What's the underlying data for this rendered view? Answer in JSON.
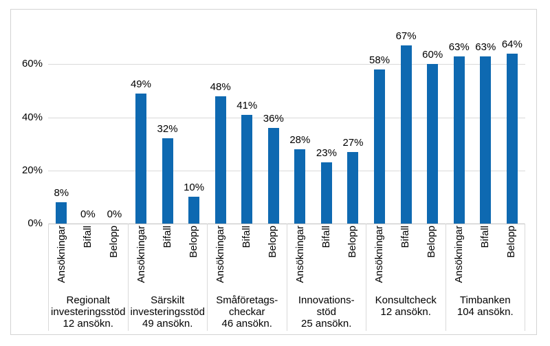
{
  "figure": {
    "background": "#FFFFFF",
    "border_color": "#D3D3D3"
  },
  "chart_data": {
    "type": "bar",
    "title": "",
    "xlabel": "",
    "ylabel": "",
    "ylim": [
      0,
      80
    ],
    "y_unit": "%",
    "grid": "horizontal",
    "legend": "none",
    "bar_color": "#0E69B1",
    "gridline_color": "#D9D9D9",
    "axis_line_color": "#BFBFBF",
    "divider_color": "#D9D9D9",
    "text_color": "#000000",
    "y_ticks": [
      {
        "label": "0%",
        "value": 0
      },
      {
        "label": "20%",
        "value": 20
      },
      {
        "label": "40%",
        "value": 40
      },
      {
        "label": "60%",
        "value": 60
      }
    ],
    "gridlines_at": [
      20,
      40,
      60
    ],
    "sub_categories": [
      "Ansökningar",
      "Bifall",
      "Belopp"
    ],
    "groups": [
      {
        "category_lines": [
          "Regionalt",
          "investeringsstöd",
          "12 ansökn."
        ],
        "values": [
          8,
          0,
          0
        ],
        "labels": [
          "8%",
          "0%",
          "0%"
        ]
      },
      {
        "category_lines": [
          "Särskilt",
          "investeringsstöd",
          "49 ansökn."
        ],
        "values": [
          49,
          32,
          10
        ],
        "labels": [
          "49%",
          "32%",
          "10%"
        ]
      },
      {
        "category_lines": [
          "Småföretags-",
          "checkar",
          "46 ansökn."
        ],
        "values": [
          48,
          41,
          36
        ],
        "labels": [
          "48%",
          "41%",
          "36%"
        ]
      },
      {
        "category_lines": [
          "Innovations-",
          "stöd",
          "25 ansökn."
        ],
        "values": [
          28,
          23,
          27
        ],
        "labels": [
          "28%",
          "23%",
          "27%"
        ]
      },
      {
        "category_lines": [
          "Konsultcheck",
          "12 ansökn."
        ],
        "values": [
          58,
          67,
          60
        ],
        "labels": [
          "58%",
          "67%",
          "60%"
        ]
      },
      {
        "category_lines": [
          "Timbanken",
          "104 ansökn."
        ],
        "values": [
          63,
          63,
          64
        ],
        "labels": [
          "63%",
          "63%",
          "64%"
        ]
      }
    ]
  }
}
